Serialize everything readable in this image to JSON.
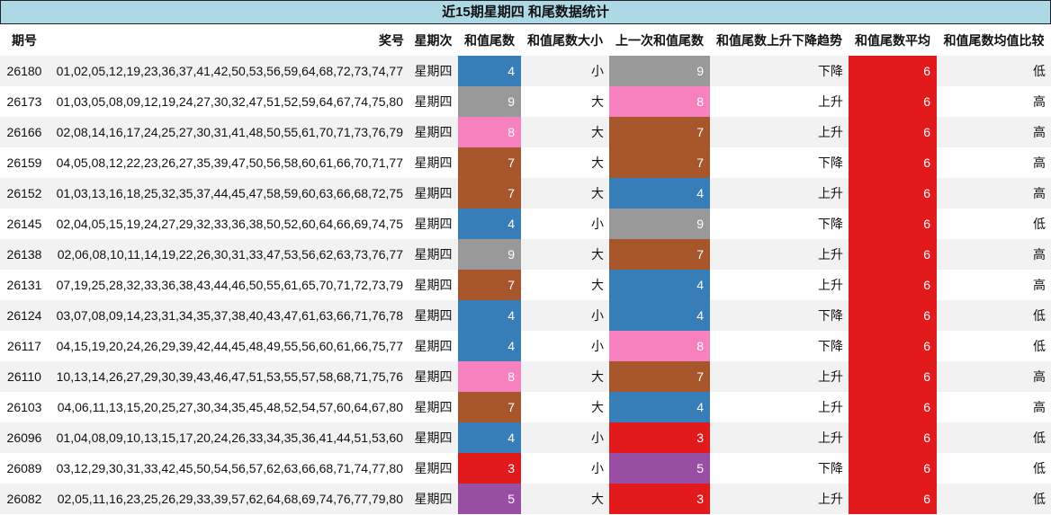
{
  "title": "近15期星期四 和尾数据统计",
  "headers": [
    "期号",
    "奖号",
    "星期次",
    "和值尾数",
    "和值尾数大小",
    "上一次和值尾数",
    "和值尾数上升下降趋势",
    "和值尾数平均",
    "和值尾数均值比较"
  ],
  "digit_colors": {
    "3": "#e31a1c",
    "4": "#377eb8",
    "5": "#984ea3",
    "7": "#a6562a",
    "8": "#f781bf",
    "9": "#999999"
  },
  "rows": [
    {
      "issue": "26180",
      "numbers": "01,02,05,12,19,23,36,37,41,42,50,53,56,59,64,68,72,73,74,77",
      "weekday": "星期四",
      "tail": "4",
      "size": "小",
      "prev_tail": "9",
      "trend": "下降",
      "avg": "6",
      "compare": "低"
    },
    {
      "issue": "26173",
      "numbers": "01,03,05,08,09,12,19,24,27,30,32,47,51,52,59,64,67,74,75,80",
      "weekday": "星期四",
      "tail": "9",
      "size": "大",
      "prev_tail": "8",
      "trend": "上升",
      "avg": "6",
      "compare": "高"
    },
    {
      "issue": "26166",
      "numbers": "02,08,14,16,17,24,25,27,30,31,41,48,50,55,61,70,71,73,76,79",
      "weekday": "星期四",
      "tail": "8",
      "size": "大",
      "prev_tail": "7",
      "trend": "上升",
      "avg": "6",
      "compare": "高"
    },
    {
      "issue": "26159",
      "numbers": "04,05,08,12,22,23,26,27,35,39,47,50,56,58,60,61,66,70,71,77",
      "weekday": "星期四",
      "tail": "7",
      "size": "大",
      "prev_tail": "7",
      "trend": "下降",
      "avg": "6",
      "compare": "高"
    },
    {
      "issue": "26152",
      "numbers": "01,03,13,16,18,25,32,35,37,44,45,47,58,59,60,63,66,68,72,75",
      "weekday": "星期四",
      "tail": "7",
      "size": "大",
      "prev_tail": "4",
      "trend": "上升",
      "avg": "6",
      "compare": "高"
    },
    {
      "issue": "26145",
      "numbers": "02,04,05,15,19,24,27,29,32,33,36,38,50,52,60,64,66,69,74,75",
      "weekday": "星期四",
      "tail": "4",
      "size": "小",
      "prev_tail": "9",
      "trend": "下降",
      "avg": "6",
      "compare": "低"
    },
    {
      "issue": "26138",
      "numbers": "02,06,08,10,11,14,19,22,26,30,31,33,47,53,56,62,63,73,76,77",
      "weekday": "星期四",
      "tail": "9",
      "size": "大",
      "prev_tail": "7",
      "trend": "上升",
      "avg": "6",
      "compare": "高"
    },
    {
      "issue": "26131",
      "numbers": "07,19,25,28,32,33,36,38,43,44,46,50,55,61,65,70,71,72,73,79",
      "weekday": "星期四",
      "tail": "7",
      "size": "大",
      "prev_tail": "4",
      "trend": "上升",
      "avg": "6",
      "compare": "高"
    },
    {
      "issue": "26124",
      "numbers": "03,07,08,09,14,23,31,34,35,37,38,40,43,47,61,63,66,71,76,78",
      "weekday": "星期四",
      "tail": "4",
      "size": "小",
      "prev_tail": "4",
      "trend": "下降",
      "avg": "6",
      "compare": "低"
    },
    {
      "issue": "26117",
      "numbers": "04,15,19,20,24,26,29,39,42,44,45,48,49,55,56,60,61,66,75,77",
      "weekday": "星期四",
      "tail": "4",
      "size": "小",
      "prev_tail": "8",
      "trend": "下降",
      "avg": "6",
      "compare": "低"
    },
    {
      "issue": "26110",
      "numbers": "10,13,14,26,27,29,30,39,43,46,47,51,53,55,57,58,68,71,75,76",
      "weekday": "星期四",
      "tail": "8",
      "size": "大",
      "prev_tail": "7",
      "trend": "上升",
      "avg": "6",
      "compare": "高"
    },
    {
      "issue": "26103",
      "numbers": "04,06,11,13,15,20,25,27,30,34,35,45,48,52,54,57,60,64,67,80",
      "weekday": "星期四",
      "tail": "7",
      "size": "大",
      "prev_tail": "4",
      "trend": "上升",
      "avg": "6",
      "compare": "高"
    },
    {
      "issue": "26096",
      "numbers": "01,04,08,09,10,13,15,17,20,24,26,33,34,35,36,41,44,51,53,60",
      "weekday": "星期四",
      "tail": "4",
      "size": "小",
      "prev_tail": "3",
      "trend": "上升",
      "avg": "6",
      "compare": "低"
    },
    {
      "issue": "26089",
      "numbers": "03,12,29,30,31,33,42,45,50,54,56,57,62,63,66,68,71,74,77,80",
      "weekday": "星期四",
      "tail": "3",
      "size": "小",
      "prev_tail": "5",
      "trend": "下降",
      "avg": "6",
      "compare": "低"
    },
    {
      "issue": "26082",
      "numbers": "02,05,11,16,23,25,26,29,33,39,57,62,64,68,69,74,76,77,79,80",
      "weekday": "星期四",
      "tail": "5",
      "size": "大",
      "prev_tail": "3",
      "trend": "上升",
      "avg": "6",
      "compare": "低"
    }
  ]
}
